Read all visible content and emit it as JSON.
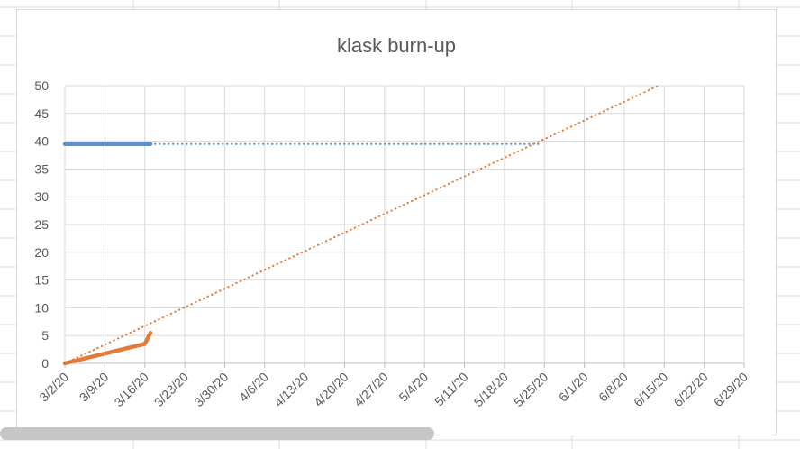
{
  "chart_data": {
    "type": "line",
    "title": "klask burn-up",
    "xlabel": "",
    "ylabel": "",
    "ylim": [
      0,
      50
    ],
    "yticks": [
      0,
      5,
      10,
      15,
      20,
      25,
      30,
      35,
      40,
      45,
      50
    ],
    "xticks": [
      "3/2/20",
      "3/9/20",
      "3/16/20",
      "3/23/20",
      "3/30/20",
      "4/6/20",
      "4/13/20",
      "4/20/20",
      "4/27/20",
      "5/4/20",
      "5/11/20",
      "5/18/20",
      "5/25/20",
      "6/1/20",
      "6/8/20",
      "6/15/20",
      "6/22/20",
      "6/29/20"
    ],
    "grid": true,
    "legend": "none",
    "series": [
      {
        "color": "#5b8fd4",
        "style": "solid",
        "points": [
          {
            "x": "3/2/20",
            "y": 39.5
          },
          {
            "x": "3/17/20",
            "y": 39.5
          }
        ]
      },
      {
        "color": "#5b8fd4",
        "style": "dotted",
        "points": [
          {
            "x": "3/17/20",
            "y": 39.5
          },
          {
            "x": "5/24/20",
            "y": 39.5
          }
        ]
      },
      {
        "color": "#e07b39",
        "style": "solid",
        "points": [
          {
            "x": "3/2/20",
            "y": 0
          },
          {
            "x": "3/16/20",
            "y": 3.5
          },
          {
            "x": "3/17/20",
            "y": 5.5
          }
        ]
      },
      {
        "color": "#e07b39",
        "style": "dotted",
        "points": [
          {
            "x": "3/2/20",
            "y": 0
          },
          {
            "x": "6/14/20",
            "y": 50
          }
        ]
      }
    ]
  }
}
